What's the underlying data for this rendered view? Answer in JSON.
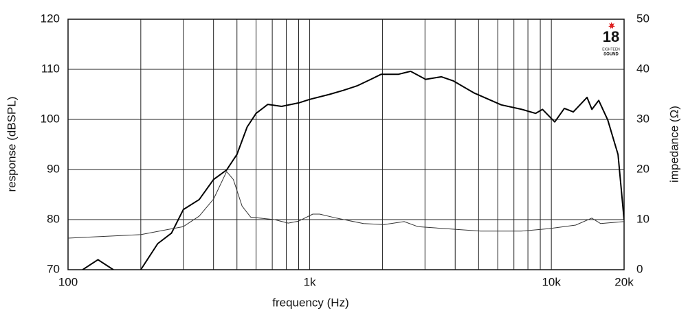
{
  "chart_data": {
    "type": "line",
    "xlabel": "frequency (Hz)",
    "ylabel": "response (dBSPL)",
    "y2label": "impedance (Ω)",
    "xscale": "log",
    "xlim": [
      100,
      20000
    ],
    "xticks": [
      100,
      {
        "value": 1000,
        "label": "1k"
      },
      {
        "value": 10000,
        "label": "10k"
      },
      {
        "value": 20000,
        "label": "20k"
      }
    ],
    "xminor": [
      200,
      300,
      400,
      500,
      600,
      700,
      800,
      900,
      2000,
      3000,
      4000,
      5000,
      6000,
      7000,
      8000,
      9000
    ],
    "ylim": [
      70,
      120
    ],
    "yticks": [
      70,
      80,
      90,
      100,
      110,
      120
    ],
    "y2lim": [
      0,
      50
    ],
    "y2ticks": [
      0,
      10,
      20,
      30,
      40,
      50
    ],
    "grid": true,
    "series": [
      {
        "color": "#000000",
        "width": 2,
        "x": [
          115,
          133,
          154,
          175,
          200,
          235,
          268,
          300,
          349,
          400,
          453,
          500,
          551,
          600,
          671,
          765,
          901,
          1000,
          1208,
          1377,
          1570,
          1790,
          1974,
          2325,
          2616,
          3020,
          3510,
          3926,
          4778,
          6205,
          7550,
          8605,
          9190,
          10330,
          11320,
          12330,
          14050,
          14720,
          15710,
          17110,
          18880,
          20000
        ],
        "values": [
          70,
          72,
          70,
          null,
          70,
          75.2,
          77.3,
          82,
          84,
          88,
          89.9,
          93,
          98.5,
          101.2,
          103,
          102.6,
          103.3,
          104,
          105,
          105.8,
          106.7,
          108,
          109,
          109,
          109.6,
          108,
          108.5,
          107.7,
          105.3,
          102.9,
          102,
          101.2,
          102,
          99.5,
          102.2,
          101.5,
          104.4,
          102,
          103.8,
          99.9,
          93,
          80
        ]
      },
      {
        "color": "#333333",
        "width": 1,
        "axis": "y2",
        "x": [
          100,
          200,
          300,
          349,
          400,
          453,
          483,
          525,
          570,
          715,
          815,
          900,
          1030,
          1100,
          1290,
          1670,
          2030,
          2460,
          2800,
          3900,
          5100,
          7500,
          9800,
          12600,
          14700,
          16000,
          20000
        ],
        "values": [
          6.3,
          7,
          8.6,
          10.7,
          14.1,
          19.6,
          18,
          12.7,
          10.5,
          10,
          9.3,
          9.7,
          11.1,
          11.1,
          10.3,
          9.2,
          9,
          9.6,
          8.6,
          8.1,
          7.7,
          7.7,
          8.2,
          8.9,
          10.3,
          9.2,
          9.6
        ]
      }
    ],
    "logo": {
      "number": "18",
      "line1": "EIGHTEEN",
      "line2": "SOUND"
    }
  }
}
